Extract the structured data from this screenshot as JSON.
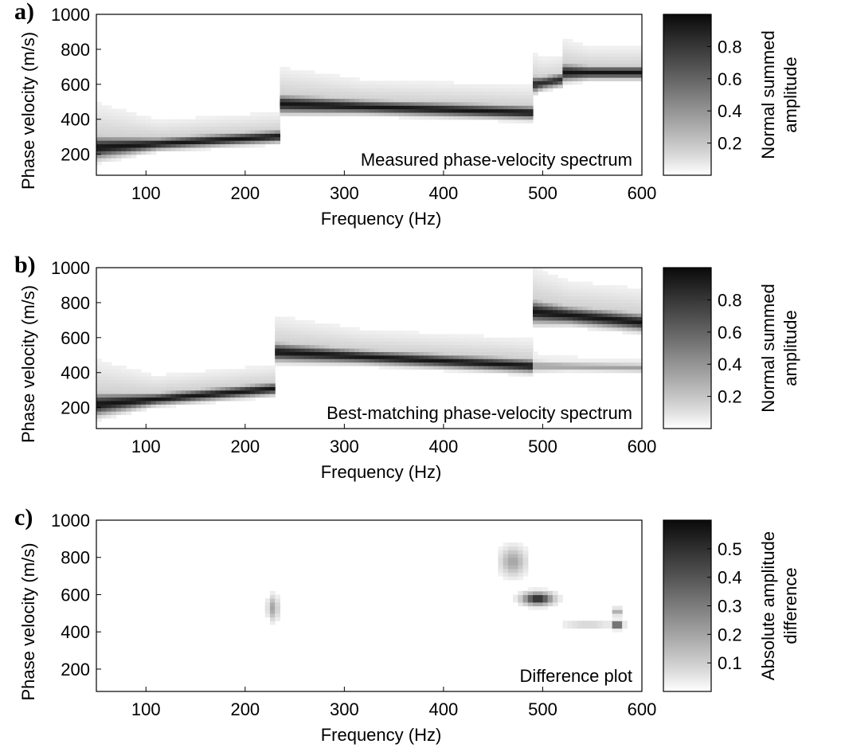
{
  "chart_data": [
    {
      "type": "heatmap",
      "panel_label": "a)",
      "annotation": "Measured phase-velocity spectrum",
      "xlabel": "Frequency (Hz)",
      "ylabel": "Phase velocity (m/s)",
      "xlim": [
        50,
        600
      ],
      "ylim": [
        80,
        1000
      ],
      "xticks": [
        100,
        200,
        300,
        400,
        500,
        600
      ],
      "yticks": [
        200,
        400,
        600,
        800,
        1000
      ],
      "colorbar": {
        "label": [
          "Normal summed",
          "amplitude"
        ],
        "range": [
          0,
          1
        ],
        "ticks": [
          0.2,
          0.4,
          0.6,
          0.8
        ]
      },
      "ridges": [
        {
          "x": [
            50,
            235
          ],
          "y": [
            240,
            305
          ],
          "amp": 0.95,
          "spread": 28
        },
        {
          "x": [
            235,
            490
          ],
          "y": [
            490,
            440
          ],
          "amp": 0.95,
          "spread": 32
        },
        {
          "x": [
            490,
            520
          ],
          "y": [
            600,
            630
          ],
          "amp": 0.85,
          "spread": 30
        },
        {
          "x": [
            520,
            600
          ],
          "y": [
            670,
            670
          ],
          "amp": 0.95,
          "spread": 30
        }
      ]
    },
    {
      "type": "heatmap",
      "panel_label": "b)",
      "annotation": "Best-matching phase-velocity spectrum",
      "xlabel": "Frequency (Hz)",
      "ylabel": "Phase velocity (m/s)",
      "xlim": [
        50,
        600
      ],
      "ylim": [
        80,
        1000
      ],
      "xticks": [
        100,
        200,
        300,
        400,
        500,
        600
      ],
      "yticks": [
        200,
        400,
        600,
        800,
        1000
      ],
      "colorbar": {
        "label": [
          "Normal summed",
          "amplitude"
        ],
        "range": [
          0,
          1
        ],
        "ticks": [
          0.2,
          0.4,
          0.6,
          0.8
        ]
      },
      "ridges": [
        {
          "x": [
            50,
            230
          ],
          "y": [
            220,
            310
          ],
          "amp": 0.95,
          "spread": 28
        },
        {
          "x": [
            230,
            490
          ],
          "y": [
            520,
            440
          ],
          "amp": 0.95,
          "spread": 32
        },
        {
          "x": [
            490,
            600
          ],
          "y": [
            750,
            690
          ],
          "amp": 0.95,
          "spread": 40
        },
        {
          "x": [
            490,
            600
          ],
          "y": [
            440,
            430
          ],
          "amp": 0.35,
          "spread": 20
        }
      ]
    },
    {
      "type": "heatmap",
      "panel_label": "c)",
      "annotation": "Difference plot",
      "xlabel": "Frequency (Hz)",
      "ylabel": "Phase velocity (m/s)",
      "xlim": [
        50,
        600
      ],
      "ylim": [
        80,
        1000
      ],
      "xticks": [
        100,
        200,
        300,
        400,
        500,
        600
      ],
      "yticks": [
        200,
        400,
        600,
        800,
        1000
      ],
      "colorbar": {
        "label": [
          "Absolute amplitude",
          "difference"
        ],
        "range": [
          0,
          0.6
        ],
        "ticks": [
          0.1,
          0.2,
          0.3,
          0.4,
          0.5
        ]
      },
      "blobs": [
        {
          "x": 495,
          "y": 580,
          "amp": 0.55,
          "sx": 14,
          "sy": 30
        },
        {
          "x": 575,
          "y": 440,
          "amp": 0.55,
          "sx": 5,
          "sy": 18
        },
        {
          "x": 470,
          "y": 780,
          "amp": 0.2,
          "sx": 12,
          "sy": 70
        },
        {
          "x": 228,
          "y": 530,
          "amp": 0.2,
          "sx": 5,
          "sy": 60
        },
        {
          "x": 545,
          "y": 440,
          "amp": 0.15,
          "sx": 25,
          "sy": 12
        },
        {
          "x": 575,
          "y": 510,
          "amp": 0.25,
          "sx": 4,
          "sy": 18
        }
      ]
    }
  ]
}
